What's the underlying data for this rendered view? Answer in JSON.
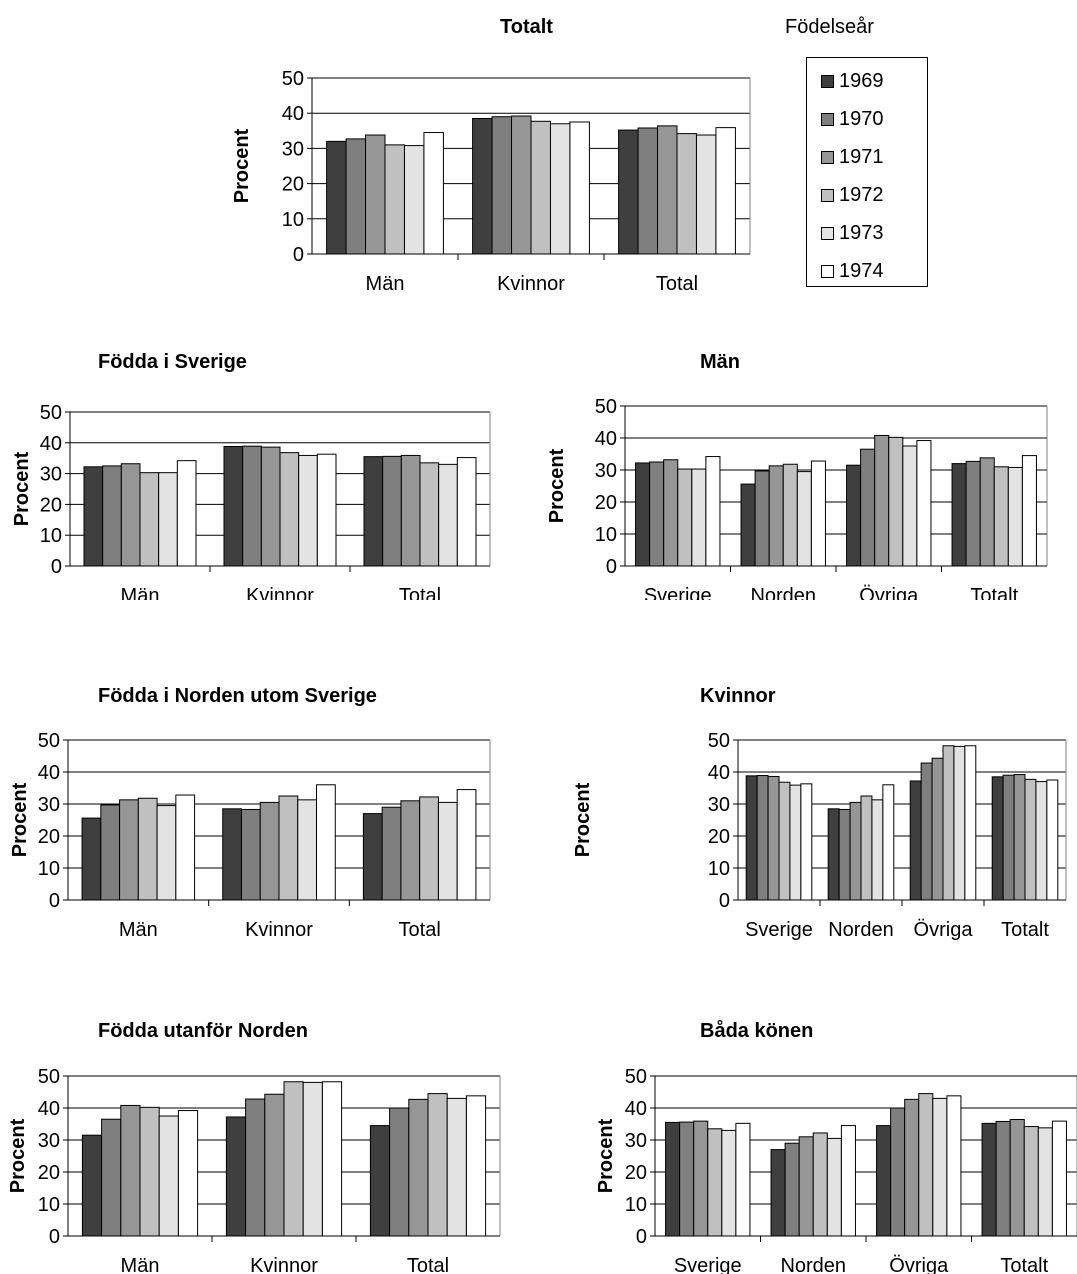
{
  "colors": [
    "#3f3f3f",
    "#7f7f7f",
    "#969696",
    "#c0c0c0",
    "#e3e3e3",
    "#ffffff"
  ],
  "legend": {
    "title": "Födelseår",
    "items": [
      "1969",
      "1970",
      "1971",
      "1972",
      "1973",
      "1974"
    ]
  },
  "chart_data": [
    {
      "type": "bar",
      "title": "Totalt",
      "ylabel": "Procent",
      "ylim": [
        0,
        50
      ],
      "yticks": [
        "0",
        "10",
        "20",
        "30",
        "40",
        "50"
      ],
      "categories": [
        "Män",
        "Kvinnor",
        "Total"
      ],
      "series": [
        {
          "name": "1969",
          "values": [
            32,
            38.5,
            35.2
          ]
        },
        {
          "name": "1970",
          "values": [
            32.7,
            39,
            35.8
          ]
        },
        {
          "name": "1971",
          "values": [
            33.8,
            39.2,
            36.4
          ]
        },
        {
          "name": "1972",
          "values": [
            31,
            37.7,
            34.2
          ]
        },
        {
          "name": "1973",
          "values": [
            30.8,
            37,
            33.8
          ]
        },
        {
          "name": "1974",
          "values": [
            34.5,
            37.5,
            35.9
          ]
        }
      ]
    },
    {
      "type": "bar",
      "title": "Födda i Sverige",
      "ylabel": "Procent",
      "ylim": [
        0,
        50
      ],
      "yticks": [
        "0",
        "10",
        "20",
        "30",
        "40",
        "50"
      ],
      "categories": [
        "Män",
        "Kvinnor",
        "Total"
      ],
      "series": [
        {
          "name": "1969",
          "values": [
            32.2,
            38.8,
            35.5
          ]
        },
        {
          "name": "1970",
          "values": [
            32.5,
            38.9,
            35.6
          ]
        },
        {
          "name": "1971",
          "values": [
            33.2,
            38.6,
            35.9
          ]
        },
        {
          "name": "1972",
          "values": [
            30.3,
            36.8,
            33.5
          ]
        },
        {
          "name": "1973",
          "values": [
            30.3,
            35.9,
            33
          ]
        },
        {
          "name": "1974",
          "values": [
            34.2,
            36.3,
            35.2
          ]
        }
      ]
    },
    {
      "type": "bar",
      "title": "Män",
      "ylabel": "Procent",
      "ylim": [
        0,
        50
      ],
      "yticks": [
        "0",
        "10",
        "20",
        "30",
        "40",
        "50"
      ],
      "categories": [
        "Sverige",
        "Norden",
        "Övriga",
        "Totalt"
      ],
      "series": [
        {
          "name": "1969",
          "values": [
            32.2,
            25.6,
            31.5,
            32
          ]
        },
        {
          "name": "1970",
          "values": [
            32.5,
            29.7,
            36.5,
            32.7
          ]
        },
        {
          "name": "1971",
          "values": [
            33.2,
            31.3,
            40.8,
            33.8
          ]
        },
        {
          "name": "1972",
          "values": [
            30.3,
            31.8,
            40.2,
            31
          ]
        },
        {
          "name": "1973",
          "values": [
            30.3,
            29.5,
            37.5,
            30.8
          ]
        },
        {
          "name": "1974",
          "values": [
            34.2,
            32.8,
            39.2,
            34.5
          ]
        }
      ]
    },
    {
      "type": "bar",
      "title": "Födda i Norden utom Sverige",
      "ylabel": "Procent",
      "ylim": [
        0,
        50
      ],
      "yticks": [
        "0",
        "10",
        "20",
        "30",
        "40",
        "50"
      ],
      "categories": [
        "Män",
        "Kvinnor",
        "Total"
      ],
      "series": [
        {
          "name": "1969",
          "values": [
            25.6,
            28.5,
            27
          ]
        },
        {
          "name": "1970",
          "values": [
            29.7,
            28.3,
            29
          ]
        },
        {
          "name": "1971",
          "values": [
            31.3,
            30.5,
            31
          ]
        },
        {
          "name": "1972",
          "values": [
            31.8,
            32.5,
            32.2
          ]
        },
        {
          "name": "1973",
          "values": [
            29.5,
            31.3,
            30.5
          ]
        },
        {
          "name": "1974",
          "values": [
            32.8,
            36,
            34.5
          ]
        }
      ]
    },
    {
      "type": "bar",
      "title": "Kvinnor",
      "ylabel": "Procent",
      "ylim": [
        0,
        50
      ],
      "yticks": [
        "0",
        "10",
        "20",
        "30",
        "40",
        "50"
      ],
      "categories": [
        "Sverige",
        "Norden",
        "Övriga",
        "Totalt"
      ],
      "series": [
        {
          "name": "1969",
          "values": [
            38.8,
            28.5,
            37.2,
            38.5
          ]
        },
        {
          "name": "1970",
          "values": [
            38.9,
            28.3,
            42.8,
            39
          ]
        },
        {
          "name": "1971",
          "values": [
            38.6,
            30.5,
            44.3,
            39.2
          ]
        },
        {
          "name": "1972",
          "values": [
            36.8,
            32.5,
            48.2,
            37.7
          ]
        },
        {
          "name": "1973",
          "values": [
            35.9,
            31.3,
            48,
            37
          ]
        },
        {
          "name": "1974",
          "values": [
            36.3,
            36,
            48.2,
            37.5
          ]
        }
      ]
    },
    {
      "type": "bar",
      "title": "Födda utanför Norden",
      "ylabel": "Procent",
      "ylim": [
        0,
        50
      ],
      "yticks": [
        "0",
        "10",
        "20",
        "30",
        "40",
        "50"
      ],
      "categories": [
        "Män",
        "Kvinnor",
        "Total"
      ],
      "series": [
        {
          "name": "1969",
          "values": [
            31.5,
            37.2,
            34.5
          ]
        },
        {
          "name": "1970",
          "values": [
            36.5,
            42.8,
            40
          ]
        },
        {
          "name": "1971",
          "values": [
            40.8,
            44.3,
            42.7
          ]
        },
        {
          "name": "1972",
          "values": [
            40.2,
            48.2,
            44.5
          ]
        },
        {
          "name": "1973",
          "values": [
            37.5,
            48,
            43
          ]
        },
        {
          "name": "1974",
          "values": [
            39.2,
            48.2,
            43.8
          ]
        }
      ]
    },
    {
      "type": "bar",
      "title": "Båda könen",
      "ylabel": "Procent",
      "ylim": [
        0,
        50
      ],
      "yticks": [
        "0",
        "10",
        "20",
        "30",
        "40",
        "50"
      ],
      "categories": [
        "Sverige",
        "Norden",
        "Övriga",
        "Totalt"
      ],
      "series": [
        {
          "name": "1969",
          "values": [
            35.5,
            27,
            34.5,
            35.2
          ]
        },
        {
          "name": "1970",
          "values": [
            35.6,
            29,
            40,
            35.8
          ]
        },
        {
          "name": "1971",
          "values": [
            35.9,
            31,
            42.7,
            36.4
          ]
        },
        {
          "name": "1972",
          "values": [
            33.5,
            32.2,
            44.5,
            34.2
          ]
        },
        {
          "name": "1973",
          "values": [
            33,
            30.5,
            43,
            33.8
          ]
        },
        {
          "name": "1974",
          "values": [
            35.2,
            34.5,
            43.8,
            35.9
          ]
        }
      ]
    }
  ]
}
